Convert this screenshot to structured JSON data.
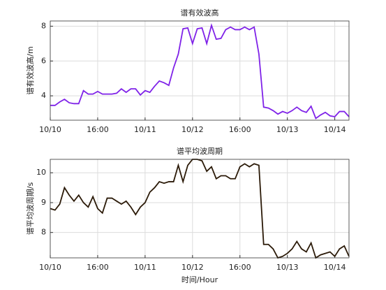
{
  "chart_data": [
    {
      "type": "line",
      "title": "谱有效波高",
      "ylabel": "谱有效波高/m",
      "x": [
        0,
        1.6,
        3.2,
        4.8,
        6.4,
        8,
        9.6,
        11.2,
        12.8,
        14.4,
        16,
        17.6,
        19.2,
        20.8,
        22.4,
        24,
        25.6,
        27.2,
        28.8,
        30.4,
        32,
        33.6,
        35.2,
        36.8,
        38.4,
        40,
        41.6,
        43.2,
        44.8,
        46.4,
        48,
        49.6,
        51.2,
        52.8,
        54.4,
        56,
        57.6,
        59.2,
        60.8,
        62.4,
        64,
        65.6,
        67.2,
        68.8,
        70.4,
        72,
        73.6,
        75.2,
        76.8,
        78.4,
        80,
        81.6,
        83.2,
        84.8,
        86.4,
        88,
        89.6,
        91.2,
        92.8,
        94.4,
        96,
        97.6,
        99.2,
        100.8
      ],
      "series": [
        {
          "color": "#7f22e8",
          "values": [
            3.45,
            3.45,
            3.65,
            3.8,
            3.6,
            3.55,
            3.55,
            4.3,
            4.1,
            4.1,
            4.25,
            4.1,
            4.1,
            4.1,
            4.15,
            4.4,
            4.2,
            4.4,
            4.4,
            4.05,
            4.3,
            4.2,
            4.55,
            4.85,
            4.75,
            4.6,
            5.6,
            6.4,
            7.85,
            7.9,
            7.0,
            7.85,
            7.9,
            7.0,
            8.05,
            7.25,
            7.3,
            7.8,
            7.95,
            7.8,
            7.8,
            7.95,
            7.8,
            7.95,
            6.4,
            3.35,
            3.3,
            3.15,
            2.95,
            3.1,
            3.0,
            3.15,
            3.35,
            3.15,
            3.05,
            3.4,
            2.7,
            2.9,
            3.05,
            2.85,
            2.8,
            3.1,
            3.1,
            2.8
          ]
        }
      ],
      "xlim": [
        0,
        100.8
      ],
      "xticks": [
        {
          "value": 0,
          "label": "10/10"
        },
        {
          "value": 16,
          "label": "16:00"
        },
        {
          "value": 32,
          "label": "10/11"
        },
        {
          "value": 48,
          "label": "10/12"
        },
        {
          "value": 64,
          "label": "16:00"
        },
        {
          "value": 80,
          "label": "10/13"
        },
        {
          "value": 96,
          "label": "10/14"
        }
      ],
      "ylim": [
        2.6,
        8.3
      ],
      "yticks": [
        4,
        6,
        8
      ],
      "grid": true
    },
    {
      "type": "line",
      "title": "谱平均波周期",
      "ylabel": "谱平均波周期/s",
      "xlabel": "时间/Hour",
      "x": [
        0,
        1.6,
        3.2,
        4.8,
        6.4,
        8,
        9.6,
        11.2,
        12.8,
        14.4,
        16,
        17.6,
        19.2,
        20.8,
        22.4,
        24,
        25.6,
        27.2,
        28.8,
        30.4,
        32,
        33.6,
        35.2,
        36.8,
        38.4,
        40,
        41.6,
        43.2,
        44.8,
        46.4,
        48,
        49.6,
        51.2,
        52.8,
        54.4,
        56,
        57.6,
        59.2,
        60.8,
        62.4,
        64,
        65.6,
        67.2,
        68.8,
        70.4,
        72,
        73.6,
        75.2,
        76.8,
        78.4,
        80,
        81.6,
        83.2,
        84.8,
        86.4,
        88,
        89.6,
        91.2,
        92.8,
        94.4,
        96,
        97.6,
        99.2,
        100.8
      ],
      "series": [
        {
          "color": "#2b1a08",
          "values": [
            8.8,
            8.75,
            8.95,
            9.5,
            9.25,
            9.05,
            9.25,
            9.0,
            8.85,
            9.2,
            8.8,
            8.65,
            9.15,
            9.15,
            9.05,
            8.95,
            9.05,
            8.85,
            8.6,
            8.85,
            9.0,
            9.35,
            9.5,
            9.7,
            9.65,
            9.7,
            9.7,
            10.25,
            9.7,
            10.25,
            10.45,
            10.45,
            10.4,
            10.05,
            10.2,
            9.8,
            9.9,
            9.9,
            9.8,
            9.8,
            10.2,
            10.3,
            10.2,
            10.3,
            10.25,
            7.6,
            7.6,
            7.45,
            7.15,
            7.2,
            7.3,
            7.45,
            7.7,
            7.45,
            7.35,
            7.65,
            7.15,
            7.25,
            7.3,
            7.35,
            7.2,
            7.45,
            7.55,
            7.2
          ]
        }
      ],
      "xlim": [
        0,
        100.8
      ],
      "xticks": [
        {
          "value": 0,
          "label": "10/10"
        },
        {
          "value": 16,
          "label": "16:00"
        },
        {
          "value": 32,
          "label": "10/11"
        },
        {
          "value": 48,
          "label": "10/12"
        },
        {
          "value": 64,
          "label": "16:00"
        },
        {
          "value": 80,
          "label": "10/13"
        },
        {
          "value": 96,
          "label": "10/14"
        }
      ],
      "ylim": [
        7.15,
        10.45
      ],
      "yticks": [
        8,
        9,
        10
      ],
      "grid": true
    }
  ]
}
